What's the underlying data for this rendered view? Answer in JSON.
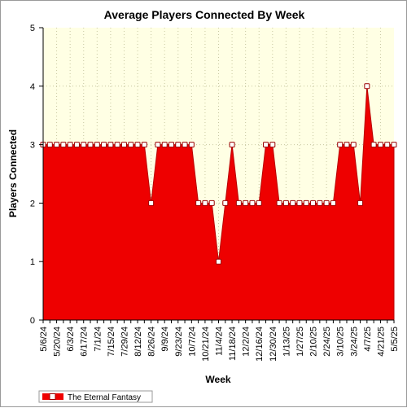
{
  "chart_data": {
    "type": "area",
    "title": "Average Players Connected By Week",
    "xlabel": "Week",
    "ylabel": "Players Connected",
    "ylim": [
      0,
      5
    ],
    "yticks": [
      "0",
      "1",
      "2",
      "3",
      "4",
      "5"
    ],
    "grid": true,
    "legend_position": "bottom-left",
    "colors": {
      "plot_bg": "#ffffe4",
      "area_fill": "#ee0000",
      "grid": "#c8c8a0",
      "marker_fill": "#ffffff",
      "marker_stroke": "#9a0000"
    },
    "x": [
      "5/6/24",
      "5/13/24",
      "5/20/24",
      "5/27/24",
      "6/3/24",
      "6/10/24",
      "6/17/24",
      "6/24/24",
      "7/1/24",
      "7/8/24",
      "7/15/24",
      "7/22/24",
      "7/29/24",
      "8/5/24",
      "8/12/24",
      "8/19/24",
      "8/26/24",
      "9/2/24",
      "9/9/24",
      "9/16/24",
      "9/23/24",
      "9/30/24",
      "10/7/24",
      "10/14/24",
      "10/21/24",
      "10/28/24",
      "11/4/24",
      "11/11/24",
      "11/18/24",
      "11/25/24",
      "12/2/24",
      "12/9/24",
      "12/16/24",
      "12/23/24",
      "12/30/24",
      "1/6/25",
      "1/13/25",
      "1/20/25",
      "1/27/25",
      "2/3/25",
      "2/10/25",
      "2/17/25",
      "2/24/25",
      "3/3/25",
      "3/10/25",
      "3/17/25",
      "3/24/25",
      "3/31/25",
      "4/7/25",
      "4/14/25",
      "4/21/25",
      "4/28/25",
      "5/5/25"
    ],
    "xtick_labels": [
      "5/6/24",
      "5/20/24",
      "6/3/24",
      "6/17/24",
      "7/1/24",
      "7/15/24",
      "7/29/24",
      "8/12/24",
      "8/26/24",
      "9/9/24",
      "9/23/24",
      "10/7/24",
      "10/21/24",
      "11/4/24",
      "11/18/24",
      "12/2/24",
      "12/16/24",
      "12/30/24",
      "1/13/25",
      "1/27/25",
      "2/10/25",
      "2/24/25",
      "3/10/25",
      "3/24/25",
      "4/7/25",
      "4/21/25",
      "5/5/25"
    ],
    "series": [
      {
        "name": "The Eternal Fantasy",
        "values": [
          3,
          3,
          3,
          3,
          3,
          3,
          3,
          3,
          3,
          3,
          3,
          3,
          3,
          3,
          3,
          3,
          2,
          3,
          3,
          3,
          3,
          3,
          3,
          2,
          2,
          2,
          1,
          2,
          3,
          2,
          2,
          2,
          2,
          3,
          3,
          2,
          2,
          2,
          2,
          2,
          2,
          2,
          2,
          2,
          3,
          3,
          3,
          2,
          4,
          3,
          3,
          3,
          3
        ]
      }
    ]
  }
}
